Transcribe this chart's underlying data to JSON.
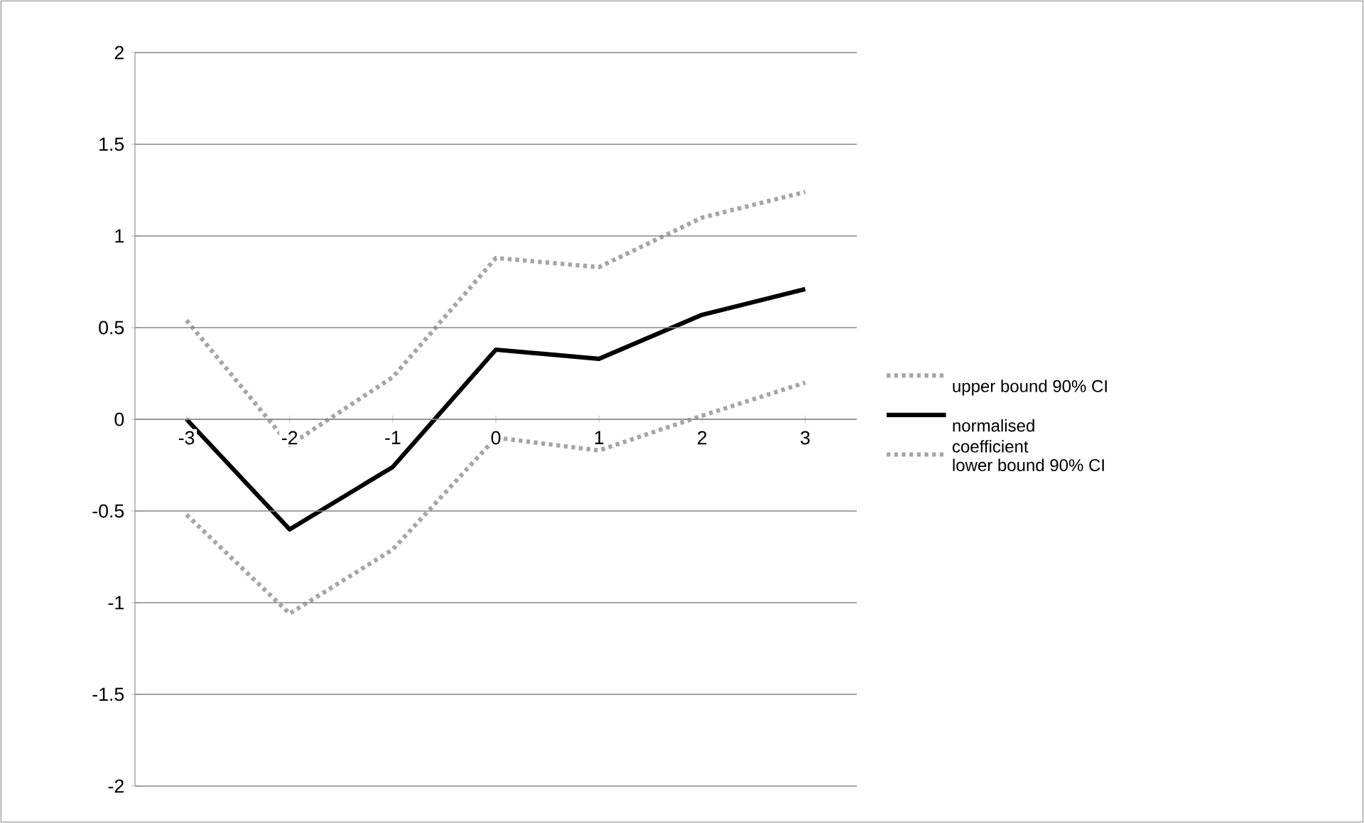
{
  "chart_data": {
    "type": "line",
    "categories": [
      "-3",
      "-2",
      "-1",
      "0",
      "1",
      "2",
      "3"
    ],
    "series": [
      {
        "name": "upper bound 90% CI",
        "color": "#a6a6a6",
        "line_style": "dotted",
        "values": [
          0.54,
          -0.14,
          0.23,
          0.88,
          0.83,
          1.1,
          1.24
        ]
      },
      {
        "name": "normalised coefficient",
        "color": "#000000",
        "line_style": "solid",
        "values": [
          0.0,
          -0.6,
          -0.26,
          0.38,
          0.33,
          0.57,
          0.71
        ]
      },
      {
        "name": "lower bound 90% CI",
        "color": "#a6a6a6",
        "line_style": "dotted",
        "values": [
          -0.52,
          -1.06,
          -0.71,
          -0.1,
          -0.17,
          0.02,
          0.2
        ]
      }
    ],
    "ylim": [
      -2,
      2
    ],
    "yticks": [
      -2,
      -1.5,
      -1,
      -0.5,
      0,
      0.5,
      1,
      1.5,
      2
    ],
    "grid": "y",
    "legend": "right",
    "marker": "none"
  }
}
